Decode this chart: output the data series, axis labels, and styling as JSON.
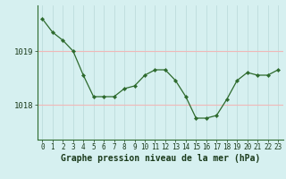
{
  "x": [
    0,
    1,
    2,
    3,
    4,
    5,
    6,
    7,
    8,
    9,
    10,
    11,
    12,
    13,
    14,
    15,
    16,
    17,
    18,
    19,
    20,
    21,
    22,
    23
  ],
  "y": [
    1019.6,
    1019.35,
    1019.2,
    1019.0,
    1018.55,
    1018.15,
    1018.15,
    1018.15,
    1018.3,
    1018.35,
    1018.55,
    1018.65,
    1018.65,
    1018.45,
    1018.15,
    1017.75,
    1017.75,
    1017.8,
    1018.1,
    1018.45,
    1018.6,
    1018.55,
    1018.55,
    1018.65
  ],
  "line_color": "#2d6a2d",
  "marker_color": "#2d6a2d",
  "bg_color": "#d6f0f0",
  "hgrid_color": "#f0b8b8",
  "vgrid_color": "#b8d8d8",
  "xlabel": "Graphe pression niveau de la mer (hPa)",
  "xlabel_fontsize": 7,
  "ylabel_ticks": [
    1018,
    1019
  ],
  "ytick_fontsize": 6.5,
  "xtick_fontsize": 5.5,
  "ylim": [
    1017.35,
    1019.85
  ],
  "xlim": [
    -0.5,
    23.5
  ]
}
